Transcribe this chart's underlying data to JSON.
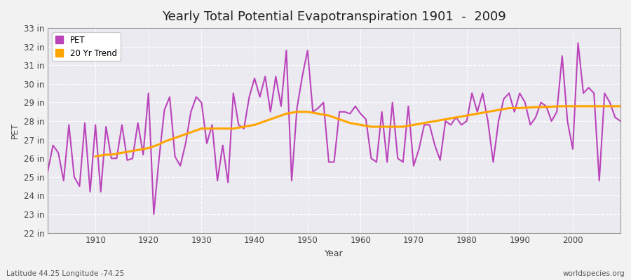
{
  "title": "Yearly Total Potential Evapotranspiration 1901  -  2009",
  "xlabel": "Year",
  "ylabel": "PET",
  "subtitle_left": "Latitude 44.25 Longitude -74.25",
  "subtitle_right": "worldspecies.org",
  "pet_color": "#BB44BB",
  "trend_color": "#FFA500",
  "bg_color": "#EAEAF0",
  "fig_bg_color": "#F2F2F2",
  "ylim": [
    22,
    33
  ],
  "yticks": [
    22,
    23,
    24,
    25,
    26,
    27,
    28,
    29,
    30,
    31,
    32,
    33
  ],
  "xlim": [
    1901,
    2009
  ],
  "xticks": [
    1910,
    1920,
    1930,
    1940,
    1950,
    1960,
    1970,
    1980,
    1990,
    2000
  ],
  "years": [
    1901,
    1902,
    1903,
    1904,
    1905,
    1906,
    1907,
    1908,
    1909,
    1910,
    1911,
    1912,
    1913,
    1914,
    1915,
    1916,
    1917,
    1918,
    1919,
    1920,
    1921,
    1922,
    1923,
    1924,
    1925,
    1926,
    1927,
    1928,
    1929,
    1930,
    1931,
    1932,
    1933,
    1934,
    1935,
    1936,
    1937,
    1938,
    1939,
    1940,
    1941,
    1942,
    1943,
    1944,
    1945,
    1946,
    1947,
    1948,
    1949,
    1950,
    1951,
    1952,
    1953,
    1954,
    1955,
    1956,
    1957,
    1958,
    1959,
    1960,
    1961,
    1962,
    1963,
    1964,
    1965,
    1966,
    1967,
    1968,
    1969,
    1970,
    1971,
    1972,
    1973,
    1974,
    1975,
    1976,
    1977,
    1978,
    1979,
    1980,
    1981,
    1982,
    1983,
    1984,
    1985,
    1986,
    1987,
    1988,
    1989,
    1990,
    1991,
    1992,
    1993,
    1994,
    1995,
    1996,
    1997,
    1998,
    1999,
    2000,
    2001,
    2002,
    2003,
    2004,
    2005,
    2006,
    2007,
    2008,
    2009
  ],
  "pet_values": [
    25.3,
    26.7,
    26.3,
    24.8,
    27.8,
    25.0,
    24.5,
    27.9,
    24.2,
    27.8,
    24.2,
    27.7,
    26.0,
    26.0,
    27.8,
    25.9,
    26.0,
    27.9,
    26.2,
    29.5,
    23.0,
    26.0,
    28.6,
    29.3,
    26.1,
    25.6,
    26.8,
    28.5,
    29.3,
    29.0,
    26.8,
    27.8,
    24.8,
    26.7,
    24.7,
    29.5,
    27.8,
    27.6,
    29.3,
    30.3,
    29.3,
    30.4,
    28.5,
    30.4,
    28.8,
    31.8,
    24.8,
    28.7,
    30.4,
    31.8,
    28.5,
    28.7,
    29.0,
    25.8,
    25.8,
    28.5,
    28.5,
    28.4,
    28.8,
    28.4,
    28.1,
    26.0,
    25.8,
    28.5,
    25.8,
    29.0,
    26.0,
    25.8,
    28.8,
    25.6,
    26.5,
    27.8,
    27.8,
    26.7,
    25.9,
    28.0,
    27.8,
    28.2,
    27.8,
    28.0,
    29.5,
    28.5,
    29.5,
    28.0,
    25.8,
    28.0,
    29.2,
    29.5,
    28.5,
    29.5,
    29.0,
    27.8,
    28.2,
    29.0,
    28.8,
    28.0,
    28.5,
    31.5,
    28.0,
    26.5,
    32.2,
    29.5,
    29.8,
    29.5,
    24.8,
    29.5,
    29.0,
    28.2,
    28.0
  ],
  "trend_start_year": 1910,
  "trend_values_by_year": {
    "1910": 26.1,
    "1911": 26.15,
    "1912": 26.2,
    "1913": 26.2,
    "1914": 26.25,
    "1915": 26.3,
    "1916": 26.35,
    "1917": 26.4,
    "1918": 26.45,
    "1919": 26.5,
    "1920": 26.55,
    "1921": 26.65,
    "1922": 26.75,
    "1923": 26.9,
    "1924": 27.0,
    "1925": 27.1,
    "1926": 27.2,
    "1927": 27.3,
    "1928": 27.4,
    "1929": 27.5,
    "1930": 27.6,
    "1931": 27.6,
    "1932": 27.6,
    "1933": 27.6,
    "1934": 27.6,
    "1935": 27.6,
    "1936": 27.6,
    "1937": 27.65,
    "1938": 27.7,
    "1939": 27.75,
    "1940": 27.8,
    "1941": 27.9,
    "1942": 28.0,
    "1943": 28.1,
    "1944": 28.2,
    "1945": 28.3,
    "1946": 28.4,
    "1947": 28.45,
    "1948": 28.5,
    "1949": 28.5,
    "1950": 28.5,
    "1951": 28.45,
    "1952": 28.4,
    "1953": 28.35,
    "1954": 28.3,
    "1955": 28.2,
    "1956": 28.1,
    "1957": 28.0,
    "1958": 27.9,
    "1959": 27.85,
    "1960": 27.8,
    "1961": 27.75,
    "1962": 27.7,
    "1963": 27.7,
    "1964": 27.7,
    "1965": 27.7,
    "1966": 27.7,
    "1967": 27.7,
    "1968": 27.7,
    "1969": 27.75,
    "1970": 27.8,
    "1971": 27.85,
    "1972": 27.9,
    "1973": 27.95,
    "1974": 28.0,
    "1975": 28.05,
    "1976": 28.1,
    "1977": 28.15,
    "1978": 28.2,
    "1979": 28.25,
    "1980": 28.3,
    "1981": 28.35,
    "1982": 28.4,
    "1983": 28.45,
    "1984": 28.5,
    "1985": 28.55,
    "1986": 28.6,
    "1987": 28.65,
    "1988": 28.7,
    "1989": 28.7,
    "1990": 28.7,
    "1991": 28.72,
    "1992": 28.74,
    "1993": 28.75,
    "1994": 28.76,
    "1995": 28.77,
    "1996": 28.78,
    "1997": 28.79,
    "1998": 28.8,
    "1999": 28.8,
    "2000": 28.8,
    "2001": 28.8,
    "2002": 28.8,
    "2003": 28.8,
    "2004": 28.8,
    "2005": 28.8,
    "2006": 28.8,
    "2007": 28.8,
    "2008": 28.8,
    "2009": 28.8
  }
}
